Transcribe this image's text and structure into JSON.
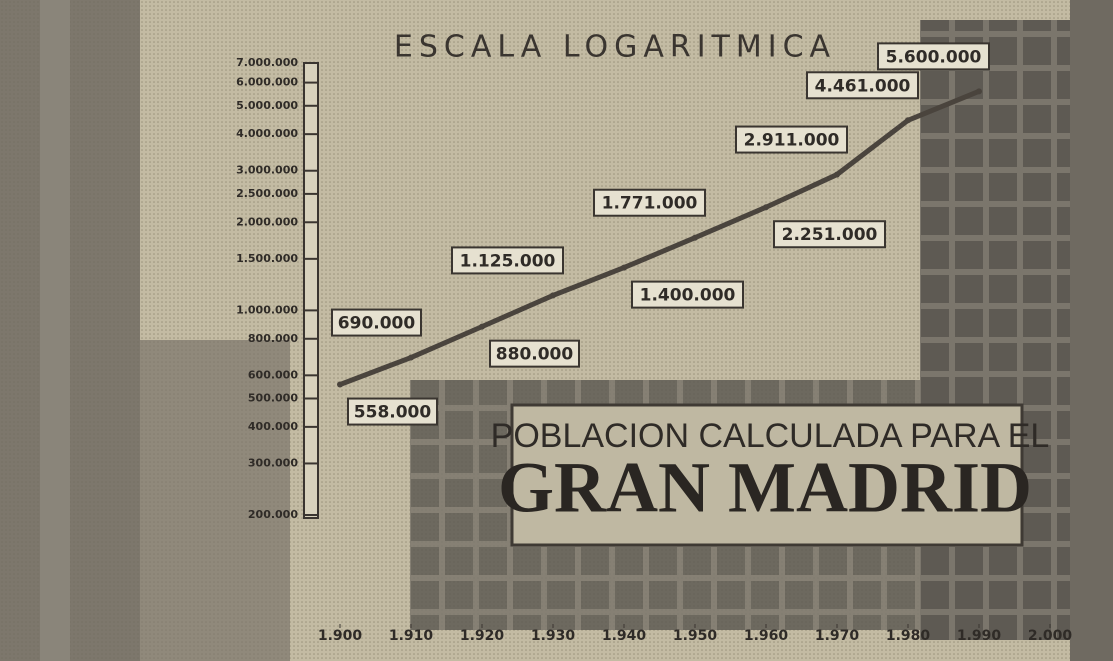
{
  "chart_data": {
    "type": "line",
    "title": "ESCALA LOGARITMICA",
    "annotations": [
      "POBLACION CALCULADA PARA EL",
      "GRAN MADRID"
    ],
    "x": [
      1900,
      1910,
      1920,
      1930,
      1940,
      1950,
      1960,
      1970,
      1980,
      1990
    ],
    "values": [
      558000,
      690000,
      880000,
      1125000,
      1400000,
      1771000,
      2251000,
      2911000,
      4461000,
      5600000
    ],
    "value_labels": [
      "558.000",
      "690.000",
      "880.000",
      "1.125.000",
      "1.400.000",
      "1.771.000",
      "2.251.000",
      "2.911.000",
      "4.461.000",
      "5.600.000"
    ],
    "color": "#4a443d",
    "log_scale": true,
    "grid": false,
    "xlim": [
      1900,
      2000
    ],
    "xticks": [
      {
        "value": 1900,
        "label": "1.900"
      },
      {
        "value": 1910,
        "label": "1.910"
      },
      {
        "value": 1920,
        "label": "1.920"
      },
      {
        "value": 1930,
        "label": "1.930"
      },
      {
        "value": 1940,
        "label": "1.940"
      },
      {
        "value": 1950,
        "label": "1.950"
      },
      {
        "value": 1960,
        "label": "1.960"
      },
      {
        "value": 1970,
        "label": "1.970"
      },
      {
        "value": 1980,
        "label": "1.980"
      },
      {
        "value": 1990,
        "label": "1.990"
      },
      {
        "value": 2000,
        "label": "2.000"
      }
    ],
    "ylim": [
      200000,
      7000000
    ],
    "yticks": [
      {
        "value": 7000000,
        "label": "7.000.000"
      },
      {
        "value": 6000000,
        "label": "6.000.000"
      },
      {
        "value": 5000000,
        "label": "5.000.000"
      },
      {
        "value": 4000000,
        "label": "4.000.000"
      },
      {
        "value": 3000000,
        "label": "3.000.000"
      },
      {
        "value": 2500000,
        "label": "2.500.000"
      },
      {
        "value": 2000000,
        "label": "2.000.000"
      },
      {
        "value": 1500000,
        "label": "1.500.000"
      },
      {
        "value": 1000000,
        "label": "1.000.000"
      },
      {
        "value": 800000,
        "label": "800.000"
      },
      {
        "value": 600000,
        "label": "600.000"
      },
      {
        "value": 500000,
        "label": "500.000"
      },
      {
        "value": 400000,
        "label": "400.000"
      },
      {
        "value": 300000,
        "label": "300.000"
      },
      {
        "value": 200000,
        "label": "200.000"
      }
    ]
  }
}
